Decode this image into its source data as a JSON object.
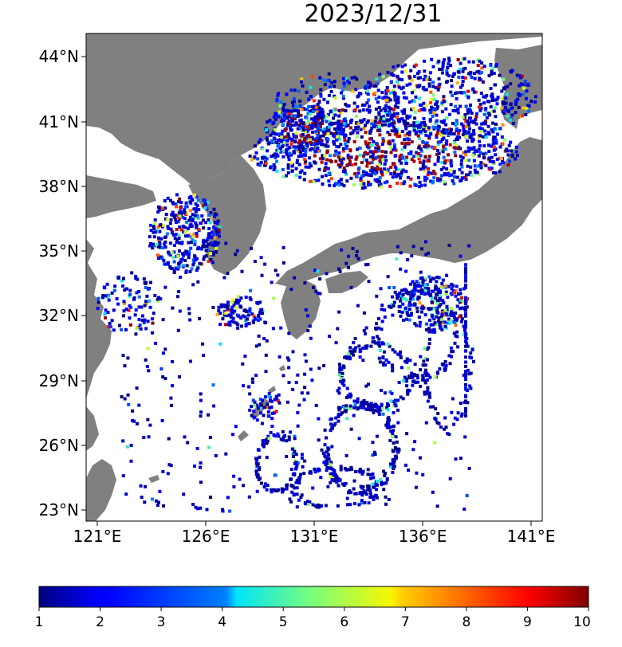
{
  "title": "2023/12/31",
  "map": {
    "lat_ticks": [
      "44°N",
      "41°N",
      "38°N",
      "35°N",
      "32°N",
      "29°N",
      "26°N",
      "23°N"
    ],
    "lon_ticks": [
      "121°E",
      "126°E",
      "131°E",
      "136°E",
      "141°E"
    ],
    "land_color": "#808080",
    "ocean_color": "#ffffff"
  },
  "colorbar": {
    "ticks": [
      "1",
      "2",
      "3",
      "4",
      "5",
      "6",
      "7",
      "8",
      "9",
      "10"
    ],
    "min": 1,
    "max": 10,
    "colormap": "jet"
  }
}
